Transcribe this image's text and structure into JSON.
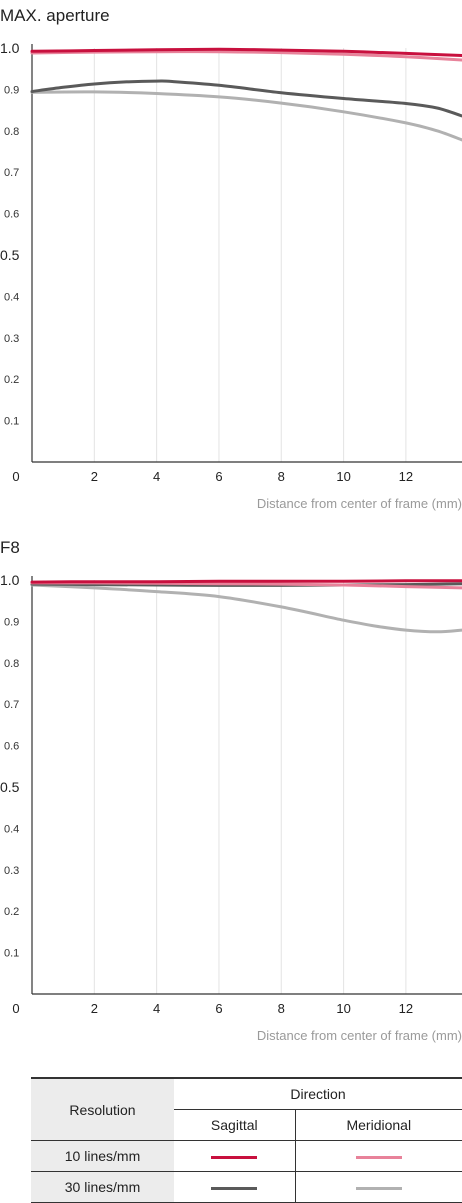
{
  "chart_data": [
    {
      "type": "line",
      "title": "MAX. aperture",
      "xlabel": "Distance from center of frame (mm)",
      "ylabel": "",
      "xlim": [
        0,
        13.8
      ],
      "ylim": [
        0,
        1.0
      ],
      "xticks": [
        "0",
        "2",
        "4",
        "6",
        "8",
        "10",
        "12"
      ],
      "yticks_major": [
        "1.0",
        "0.5"
      ],
      "yticks_minor": [
        "0.9",
        "0.8",
        "0.7",
        "0.6",
        "0.4",
        "0.3",
        "0.2",
        "0.1"
      ],
      "grid": "vertical",
      "series": [
        {
          "key": "s10",
          "color": "#c8103e",
          "x": [
            0,
            2,
            4,
            6,
            8,
            10,
            12,
            13.8
          ],
          "y": [
            0.992,
            0.994,
            0.996,
            0.997,
            0.995,
            0.992,
            0.987,
            0.982
          ]
        },
        {
          "key": "m10",
          "color": "#e8829a",
          "x": [
            0,
            2,
            4,
            6,
            8,
            10,
            12,
            13.8
          ],
          "y": [
            0.988,
            0.99,
            0.991,
            0.991,
            0.989,
            0.985,
            0.979,
            0.971
          ]
        },
        {
          "key": "s30",
          "color": "#5a5a5a",
          "x": [
            0,
            1,
            2,
            3,
            4,
            4.5,
            6,
            8,
            10,
            12,
            13,
            13.8
          ],
          "y": [
            0.895,
            0.905,
            0.913,
            0.918,
            0.92,
            0.919,
            0.91,
            0.892,
            0.878,
            0.866,
            0.855,
            0.836
          ]
        },
        {
          "key": "m30",
          "color": "#b1b1b1",
          "x": [
            0,
            2,
            4,
            6,
            8,
            10,
            12,
            13,
            13.8
          ],
          "y": [
            0.893,
            0.894,
            0.89,
            0.882,
            0.867,
            0.846,
            0.819,
            0.8,
            0.778
          ]
        }
      ]
    },
    {
      "type": "line",
      "title": "F8",
      "xlabel": "Distance from center of frame (mm)",
      "ylabel": "",
      "xlim": [
        0,
        13.8
      ],
      "ylim": [
        0,
        1.0
      ],
      "xticks": [
        "0",
        "2",
        "4",
        "6",
        "8",
        "10",
        "12"
      ],
      "yticks_major": [
        "1.0",
        "0.5"
      ],
      "yticks_minor": [
        "0.9",
        "0.8",
        "0.7",
        "0.6",
        "0.4",
        "0.3",
        "0.2",
        "0.1"
      ],
      "grid": "vertical",
      "series": [
        {
          "key": "s10",
          "color": "#c8103e",
          "x": [
            0,
            2,
            4,
            6,
            8,
            10,
            12,
            13.8
          ],
          "y": [
            0.995,
            0.996,
            0.996,
            0.997,
            0.997,
            0.997,
            0.998,
            0.998
          ]
        },
        {
          "key": "m10",
          "color": "#e8829a",
          "x": [
            0,
            2,
            4,
            6,
            8,
            10,
            12,
            13.8
          ],
          "y": [
            0.993,
            0.993,
            0.992,
            0.991,
            0.99,
            0.988,
            0.984,
            0.981
          ]
        },
        {
          "key": "s30",
          "color": "#5a5a5a",
          "x": [
            0,
            2,
            4,
            6,
            8,
            10,
            12,
            13.8
          ],
          "y": [
            0.99,
            0.989,
            0.988,
            0.987,
            0.987,
            0.988,
            0.989,
            0.991
          ]
        },
        {
          "key": "m30",
          "color": "#b1b1b1",
          "x": [
            0,
            2,
            4,
            6,
            8,
            10,
            11,
            12,
            13,
            13.8
          ],
          "y": [
            0.988,
            0.981,
            0.972,
            0.96,
            0.935,
            0.903,
            0.889,
            0.879,
            0.875,
            0.879
          ]
        }
      ]
    }
  ],
  "legend": {
    "resolution_label": "Resolution",
    "direction_label": "Direction",
    "sagittal_label": "Sagittal",
    "meridional_label": "Meridional",
    "rows": [
      {
        "label": "10 lines/mm",
        "sagittal_color": "#c8103e",
        "meridional_color": "#e8829a"
      },
      {
        "label": "30 lines/mm",
        "sagittal_color": "#5a5a5a",
        "meridional_color": "#b1b1b1"
      }
    ]
  }
}
